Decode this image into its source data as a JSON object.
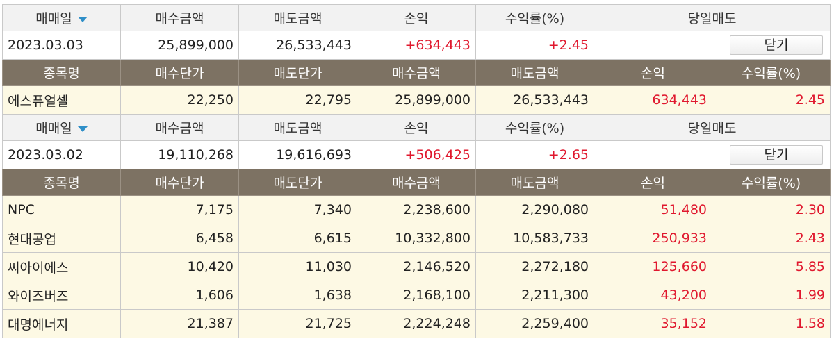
{
  "summary_headers": {
    "trade_date": "매매일",
    "buy_amount": "매수금액",
    "sell_amount": "매도금액",
    "profit": "손익",
    "return_rate": "수익률(%)",
    "same_day_sell": "당일매도"
  },
  "detail_headers": {
    "name": "종목명",
    "buy_price": "매수단가",
    "sell_price": "매도단가",
    "buy_amount": "매수금액",
    "sell_amount": "매도금액",
    "profit": "손익",
    "return_rate": "수익률(%)"
  },
  "close_label": "닫기",
  "accent_colors": {
    "profit": "#e0182e",
    "sort_arrow": "#2f8fc8",
    "detail_header_bg": "#7d7263",
    "detail_row_bg": "#fdf9e4"
  },
  "days": [
    {
      "date": "2023.03.03",
      "buy_amount": "25,899,000",
      "sell_amount": "26,533,443",
      "profit": "+634,443",
      "return_rate": "+2.45",
      "stocks": [
        {
          "name": "에스퓨얼셀",
          "buy_price": "22,250",
          "sell_price": "22,795",
          "buy_amount": "25,899,000",
          "sell_amount": "26,533,443",
          "profit": "634,443",
          "return_rate": "2.45"
        }
      ]
    },
    {
      "date": "2023.03.02",
      "buy_amount": "19,110,268",
      "sell_amount": "19,616,693",
      "profit": "+506,425",
      "return_rate": "+2.65",
      "stocks": [
        {
          "name": "NPC",
          "buy_price": "7,175",
          "sell_price": "7,340",
          "buy_amount": "2,238,600",
          "sell_amount": "2,290,080",
          "profit": "51,480",
          "return_rate": "2.30"
        },
        {
          "name": "현대공업",
          "buy_price": "6,458",
          "sell_price": "6,615",
          "buy_amount": "10,332,800",
          "sell_amount": "10,583,733",
          "profit": "250,933",
          "return_rate": "2.43"
        },
        {
          "name": "씨아이에스",
          "buy_price": "10,420",
          "sell_price": "11,030",
          "buy_amount": "2,146,520",
          "sell_amount": "2,272,180",
          "profit": "125,660",
          "return_rate": "5.85"
        },
        {
          "name": "와이즈버즈",
          "buy_price": "1,606",
          "sell_price": "1,638",
          "buy_amount": "2,168,100",
          "sell_amount": "2,211,300",
          "profit": "43,200",
          "return_rate": "1.99"
        },
        {
          "name": "대명에너지",
          "buy_price": "21,387",
          "sell_price": "21,725",
          "buy_amount": "2,224,248",
          "sell_amount": "2,259,400",
          "profit": "35,152",
          "return_rate": "1.58"
        }
      ]
    }
  ]
}
